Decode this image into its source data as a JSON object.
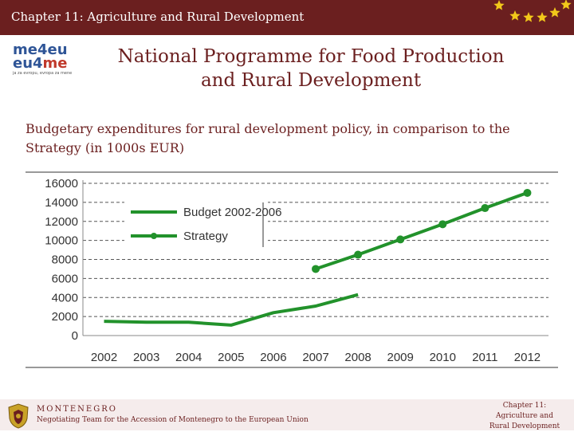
{
  "header": {
    "title": "Chapter 11: Agriculture and Rural Development"
  },
  "logo": {
    "line1_a": "me4",
    "line1_b": "eu",
    "line2_a": "eu4",
    "line2_b": "me",
    "tagline": "ja za evropu, evropa za mene"
  },
  "slide": {
    "title_line1": "National Programme for Food Production",
    "title_line2": "and Rural Development",
    "subtitle": "Budgetary expenditures for rural development policy, in comparison to the Strategy (in 1000s EUR)"
  },
  "colors": {
    "brand": "#6b1f1f",
    "series": "#22922b",
    "star": "#f2c81a"
  },
  "chart_data": {
    "type": "line",
    "title": "",
    "xlabel": "",
    "ylabel": "",
    "x": [
      "2002",
      "2003",
      "2004",
      "2005",
      "2006",
      "2007",
      "2008",
      "2009",
      "2010",
      "2011",
      "2012"
    ],
    "ylim": [
      0,
      16000
    ],
    "yticks": [
      "0",
      "2000",
      "4000",
      "6000",
      "8000",
      "10000",
      "12000",
      "14000",
      "16000"
    ],
    "grid": "horizontal-dashed",
    "legend_position": "top-left",
    "series": [
      {
        "name": "Budget 2002-2006",
        "markers": false,
        "values": [
          1500,
          1400,
          1400,
          1100,
          2400,
          3100,
          4300,
          null,
          null,
          null,
          null
        ]
      },
      {
        "name": "Strategy",
        "markers": true,
        "values": [
          null,
          null,
          null,
          null,
          null,
          7000,
          8500,
          10100,
          11700,
          13400,
          15000
        ]
      }
    ]
  },
  "footer": {
    "country": "MONTENEGRO",
    "team": "Negotiating Team for the Accession of Montenegro to the European Union",
    "chapter_line1": "Chapter 11:",
    "chapter_line2": "Agriculture and",
    "chapter_line3": "Rural Development"
  }
}
